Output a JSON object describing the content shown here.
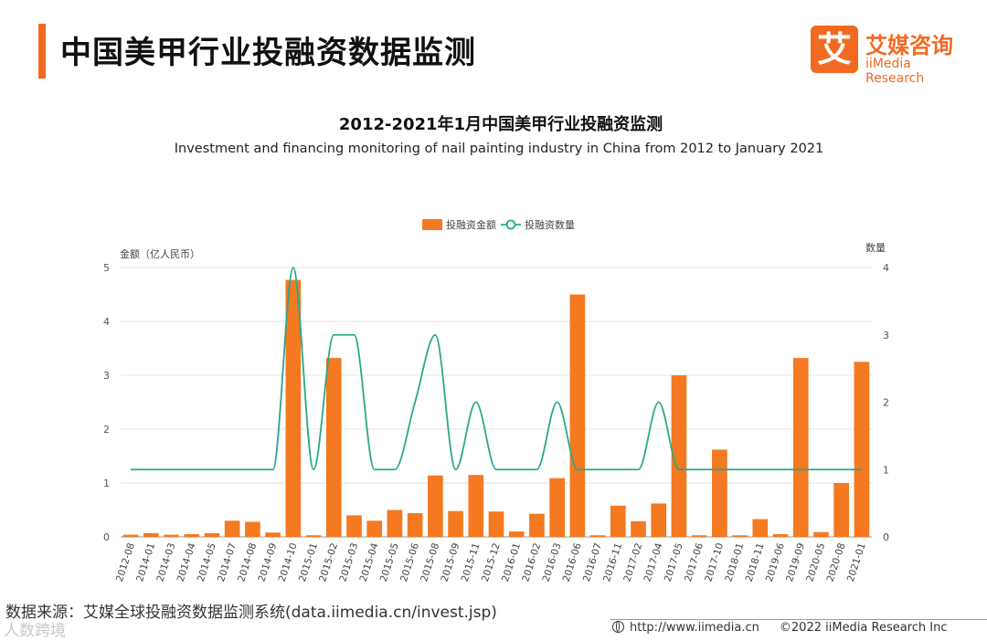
{
  "header": {
    "title": "中国美甲行业投融资数据监测",
    "logo_mark": "艾",
    "logo_cn": "艾媒咨询",
    "logo_en": "iiMedia Research"
  },
  "colors": {
    "accent": "#f26a21",
    "bar": "#f47920",
    "line": "#2aa889",
    "axis": "#999999"
  },
  "chart_data": {
    "type": "bar",
    "title": "2012-2021年1月中国美甲行业投融资监测",
    "subtitle": "Investment and financing monitoring of nail painting industry in China from 2012 to January 2021",
    "ylabel_left": "金额（亿人民币）",
    "ylabel_right": "数量",
    "ylim_left": [
      0,
      5
    ],
    "ylim_right": [
      0,
      4
    ],
    "yticks_left": [
      "0",
      "1",
      "2",
      "3",
      "4",
      "5"
    ],
    "yticks_right": [
      "0",
      "1",
      "2",
      "3",
      "4"
    ],
    "legend_position": "top-center",
    "grid": true,
    "categories": [
      "2012-08",
      "2014-01",
      "2014-03",
      "2014-04",
      "2014-05",
      "2014-07",
      "2014-08",
      "2014-09",
      "2014-10",
      "2015-01",
      "2015-02",
      "2015-03",
      "2015-04",
      "2015-05",
      "2015-06",
      "2015-08",
      "2015-09",
      "2015-11",
      "2015-12",
      "2016-01",
      "2016-02",
      "2016-03",
      "2016-06",
      "2016-07",
      "2016-11",
      "2017-02",
      "2017-04",
      "2017-05",
      "2017-06",
      "2017-10",
      "2018-01",
      "2018-11",
      "2019-06",
      "2019-09",
      "2020-05",
      "2020-08",
      "2021-01"
    ],
    "series": [
      {
        "name": "投融资金额",
        "type": "bar",
        "axis": "left",
        "values": [
          0.04,
          0.07,
          0.04,
          0.05,
          0.07,
          0.3,
          0.28,
          0.08,
          4.77,
          0.03,
          3.32,
          0.4,
          0.3,
          0.5,
          0.44,
          1.14,
          0.48,
          1.15,
          0.47,
          0.1,
          0.43,
          1.09,
          4.5,
          0.03,
          0.58,
          0.29,
          0.62,
          3.0,
          0.03,
          1.62,
          0.03,
          0.33,
          0.05,
          3.32,
          0.09,
          1.0,
          3.25
        ]
      },
      {
        "name": "投融资数量",
        "type": "line",
        "axis": "right",
        "values": [
          1,
          1,
          1,
          1,
          1,
          1,
          1,
          1,
          4,
          1,
          3,
          3,
          1,
          1,
          2,
          3,
          1,
          2,
          1,
          1,
          1,
          2,
          1,
          1,
          1,
          1,
          2,
          1,
          1,
          1,
          1,
          1,
          1,
          1,
          1,
          1,
          1
        ]
      }
    ]
  },
  "footer": {
    "source": "数据来源：艾媒全球投融资数据监测系统(data.iimedia.cn/invest.jsp)",
    "watermark": "人数跨境",
    "website": "http://www.iimedia.cn",
    "copyright": "©2022  iiMedia Research  Inc"
  }
}
